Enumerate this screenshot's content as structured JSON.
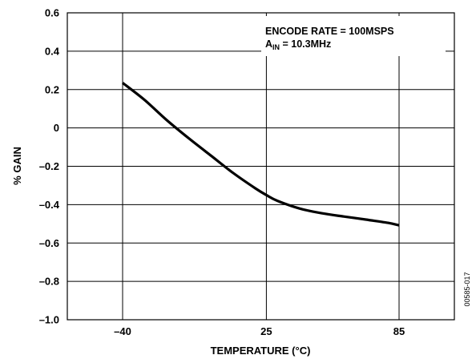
{
  "chart_data": {
    "type": "line",
    "title": "",
    "xlabel": "TEMPERATURE (°C)",
    "ylabel": "% GAIN",
    "x_categories": [
      "–40",
      "25",
      "85"
    ],
    "x": [
      -40,
      -30,
      -20,
      -10,
      0,
      10,
      20,
      25,
      30,
      40,
      50,
      60,
      70,
      80,
      85
    ],
    "series": [
      {
        "name": "",
        "values": [
          0.235,
          0.145,
          0.04,
          -0.055,
          -0.145,
          -0.235,
          -0.315,
          -0.35,
          -0.38,
          -0.42,
          -0.445,
          -0.462,
          -0.478,
          -0.495,
          -0.508
        ]
      }
    ],
    "xlim": [
      -65,
      110
    ],
    "ylim": [
      -1.0,
      0.6
    ],
    "y_ticks": [
      0.6,
      0.4,
      0.2,
      0,
      -0.2,
      -0.4,
      -0.6,
      -0.8,
      -1.0
    ],
    "y_tick_labels": [
      "0.6",
      "0.4",
      "0.2",
      "0",
      "–0.2",
      "–0.4",
      "–0.6",
      "–0.8",
      "–1.0"
    ],
    "x_ticks": [
      -40,
      25,
      85
    ],
    "grid": true,
    "line_color": "#000000",
    "annotations": {
      "line1": "ENCODE RATE = 100MSPS",
      "line2_main": "A",
      "line2_sub": "IN",
      "line2_rest": " = 10.3MHz"
    },
    "figure_id": "00585-017"
  }
}
